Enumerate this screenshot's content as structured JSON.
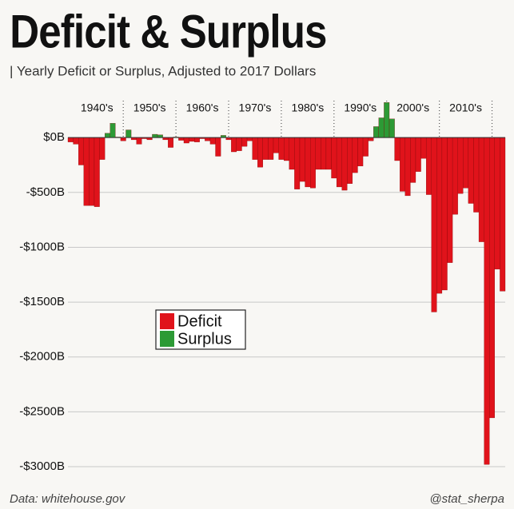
{
  "chart_data": {
    "type": "bar",
    "title": "Deficit & Surplus",
    "subtitle": "| Yearly Deficit or Surplus, Adjusted to 2017 Dollars",
    "source": "Data: whitehouse.gov",
    "credit": "@stat_sherpa",
    "x": [
      1940,
      1941,
      1942,
      1943,
      1944,
      1945,
      1946,
      1947,
      1948,
      1949,
      1950,
      1951,
      1952,
      1953,
      1954,
      1955,
      1956,
      1957,
      1958,
      1959,
      1960,
      1961,
      1962,
      1963,
      1964,
      1965,
      1966,
      1967,
      1968,
      1969,
      1970,
      1971,
      1972,
      1973,
      1974,
      1975,
      1976,
      1977,
      1978,
      1979,
      1980,
      1981,
      1982,
      1983,
      1984,
      1985,
      1986,
      1987,
      1988,
      1989,
      1990,
      1991,
      1992,
      1993,
      1994,
      1995,
      1996,
      1997,
      1998,
      1999,
      2000,
      2001,
      2002,
      2003,
      2004,
      2005,
      2006,
      2007,
      2008,
      2009,
      2010,
      2011,
      2012,
      2013,
      2014,
      2015,
      2016,
      2017,
      2018,
      2019,
      2020,
      2021,
      2022
    ],
    "values": [
      -40,
      -60,
      -250,
      -620,
      -620,
      -630,
      -200,
      40,
      130,
      5,
      -30,
      70,
      -20,
      -60,
      -10,
      -20,
      30,
      25,
      -20,
      -90,
      5,
      -25,
      -50,
      -35,
      -40,
      -10,
      -30,
      -60,
      -170,
      20,
      -20,
      -130,
      -120,
      -80,
      -30,
      -200,
      -270,
      -200,
      -200,
      -140,
      -200,
      -210,
      -290,
      -470,
      -400,
      -450,
      -460,
      -290,
      -290,
      -290,
      -370,
      -450,
      -480,
      -420,
      -320,
      -260,
      -170,
      -30,
      100,
      180,
      320,
      170,
      -210,
      -490,
      -530,
      -410,
      -310,
      -190,
      -520,
      -1590,
      -1420,
      -1390,
      -1140,
      -700,
      -510,
      -460,
      -600,
      -680,
      -950,
      -2980,
      -2555,
      -1200,
      -1400
    ],
    "legend": [
      {
        "name": "Deficit",
        "color": "#e0131b"
      },
      {
        "name": "Surplus",
        "color": "#2c9a35"
      }
    ],
    "xlim": [
      1939.5,
      2022.5
    ],
    "xticks": [
      {
        "value": 1945,
        "label": "1940's"
      },
      {
        "value": 1955,
        "label": "1950's"
      },
      {
        "value": 1965,
        "label": "1960's"
      },
      {
        "value": 1975,
        "label": "1970's"
      },
      {
        "value": 1985,
        "label": "1980's"
      },
      {
        "value": 1995,
        "label": "1990's"
      },
      {
        "value": 2005,
        "label": "2000's"
      },
      {
        "value": 2015,
        "label": "2010's"
      }
    ],
    "ylim": [
      -3080,
      380
    ],
    "yticks": [
      {
        "value": 0,
        "label": "$0B"
      },
      {
        "value": -500,
        "label": "-$500B"
      },
      {
        "value": -1000,
        "label": "-$1000B"
      },
      {
        "value": -1500,
        "label": "-$1500B"
      },
      {
        "value": -2000,
        "label": "-$2000B"
      },
      {
        "value": -2500,
        "label": "-$2500B"
      },
      {
        "value": -3000,
        "label": "-$3000B"
      }
    ],
    "grid": true
  }
}
